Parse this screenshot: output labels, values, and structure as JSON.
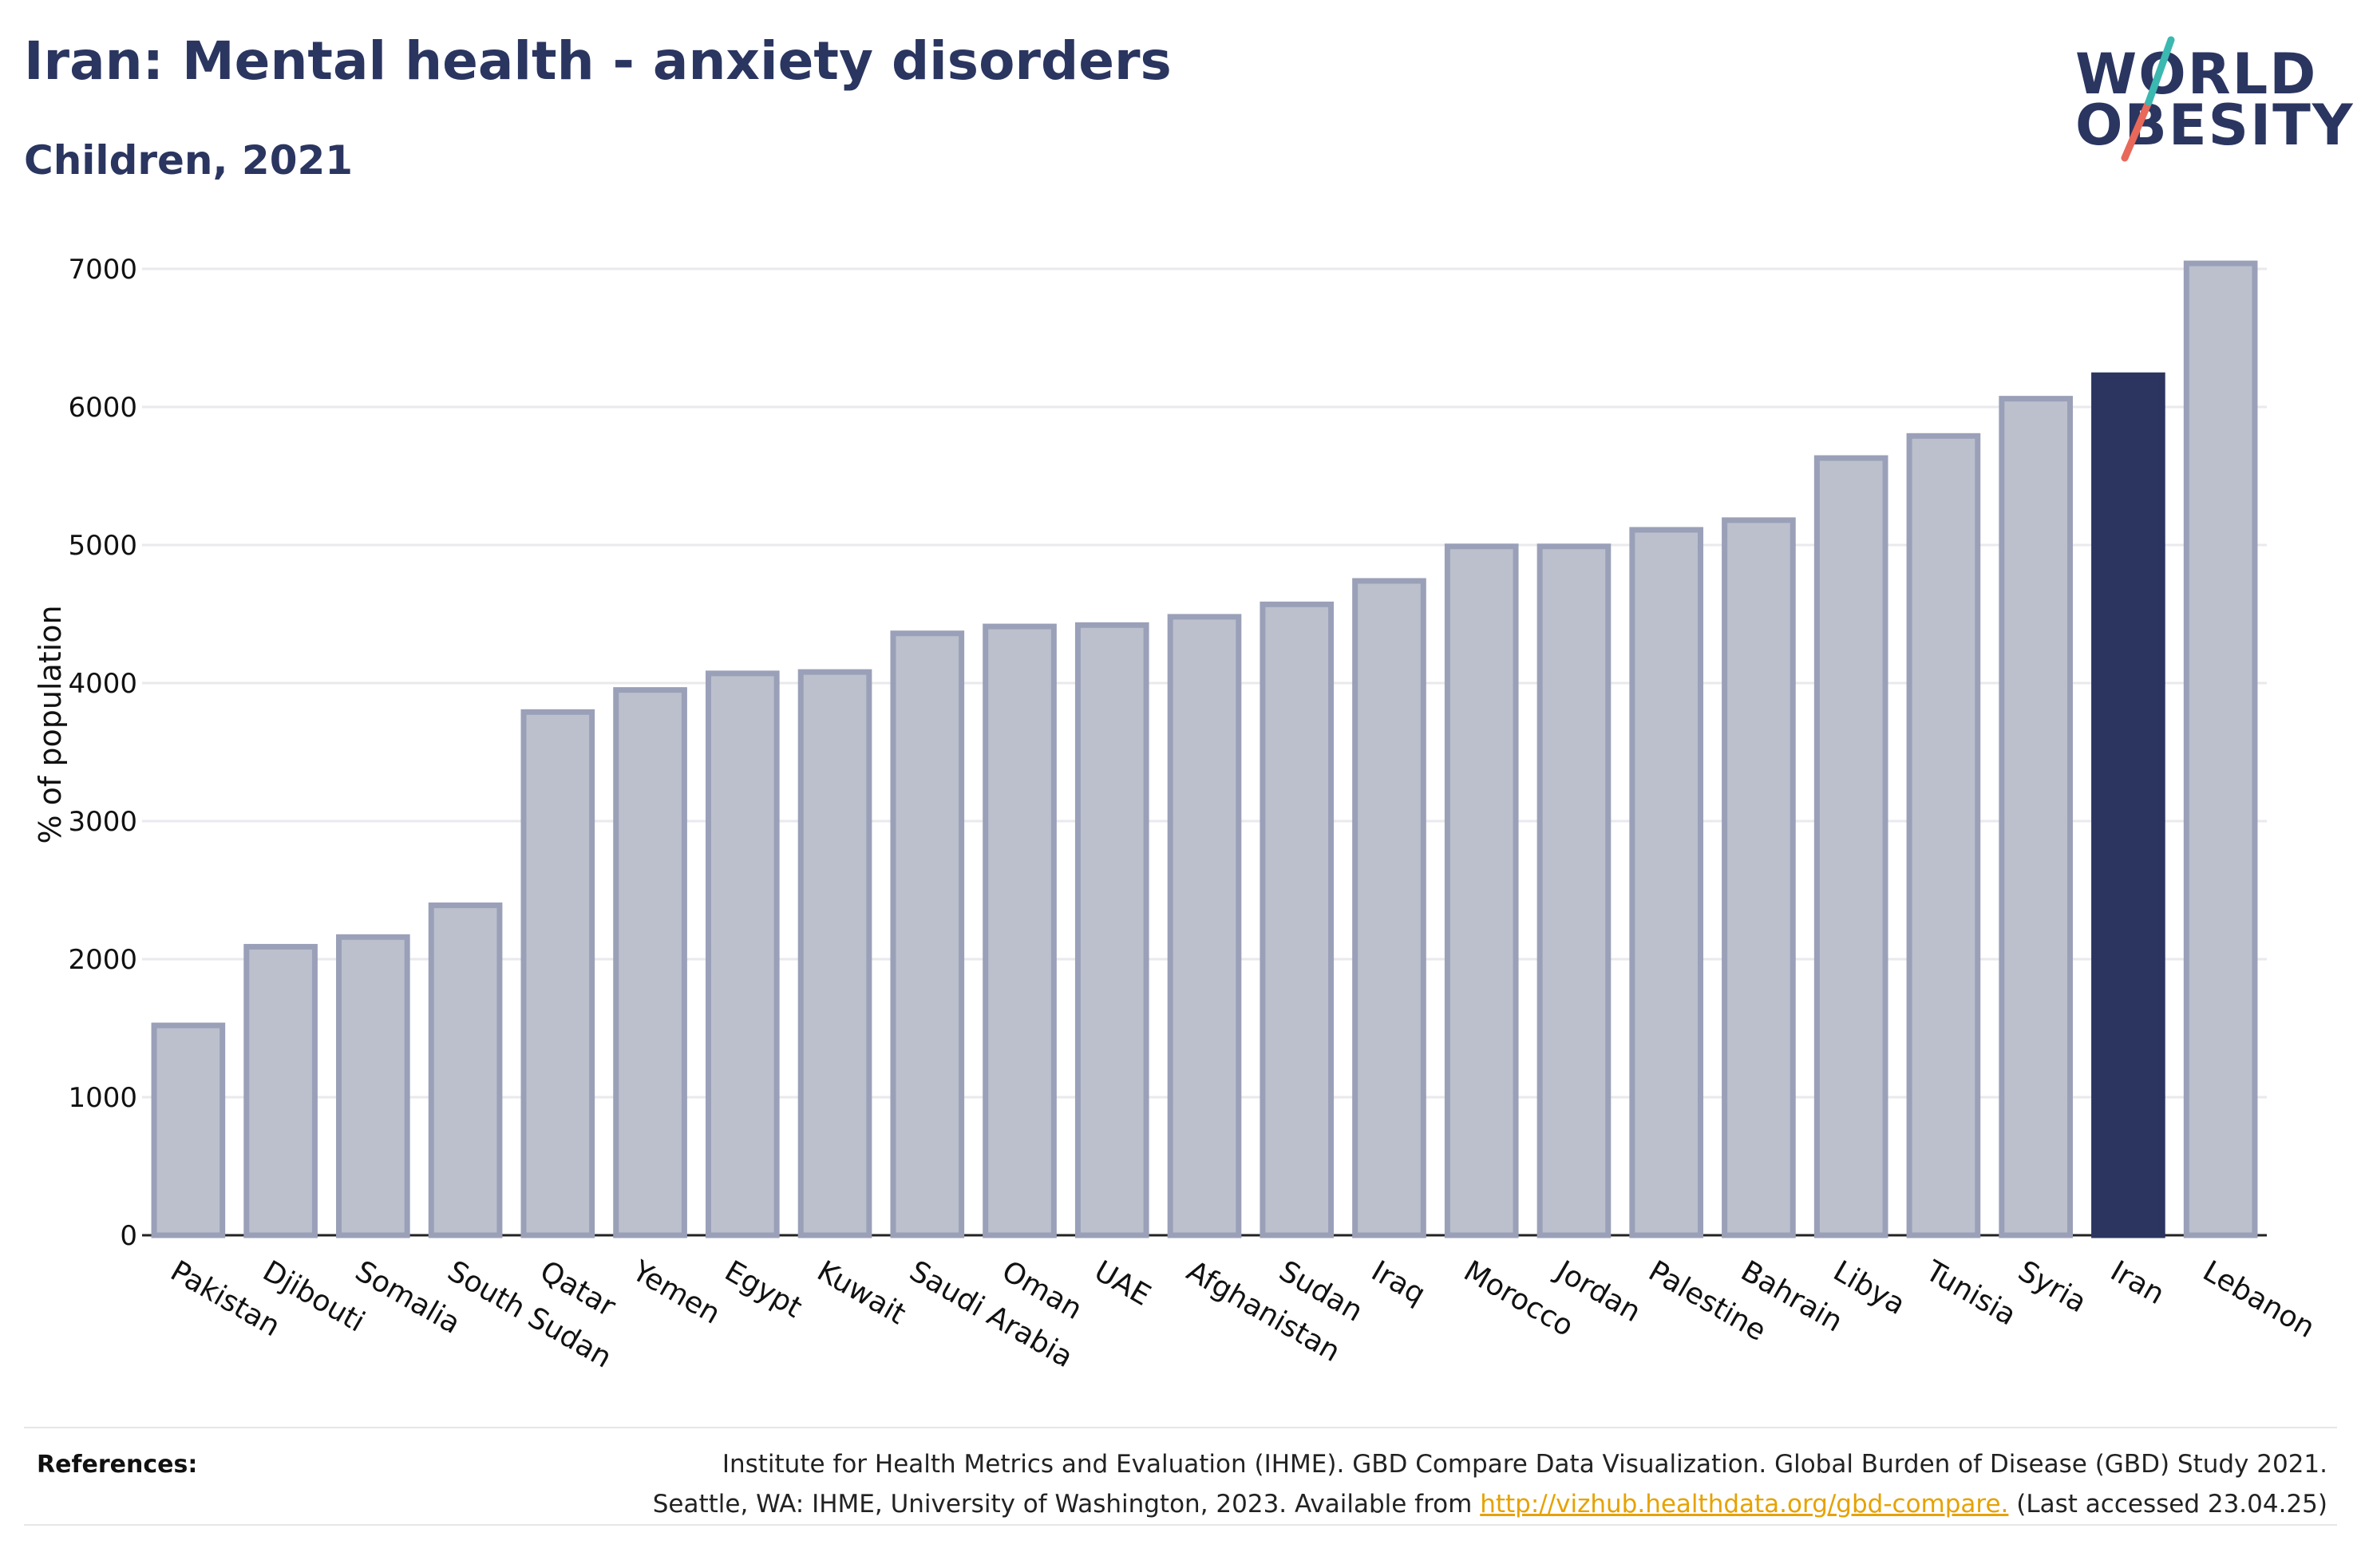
{
  "header": {
    "title": "Iran: Mental health - anxiety disorders",
    "subtitle": "Children, 2021"
  },
  "logo": {
    "line1": "WORLD",
    "line2": "OBESITY"
  },
  "colors": {
    "highlight": "#2b3560",
    "bar_fill": "#bcc0cd",
    "bar_stroke": "#9aa0b8",
    "brand_accent_teal": "#3bb8b0",
    "brand_accent_coral": "#e8685a",
    "link": "#e6a200"
  },
  "chart_data": {
    "type": "bar",
    "title": "Iran: Mental health - anxiety disorders",
    "subtitle": "Children, 2021",
    "xlabel": "",
    "ylabel": "% of population",
    "ylim": [
      0,
      7000
    ],
    "yticks": [
      0,
      1000,
      2000,
      3000,
      4000,
      5000,
      6000,
      7000
    ],
    "grid": true,
    "highlight": "Iran",
    "categories": [
      "Pakistan",
      "Djibouti",
      "Somalia",
      "South Sudan",
      "Qatar",
      "Yemen",
      "Egypt",
      "Kuwait",
      "Saudi Arabia",
      "Oman",
      "UAE",
      "Afghanistan",
      "Sudan",
      "Iraq",
      "Morocco",
      "Jordan",
      "Palestine",
      "Bahrain",
      "Libya",
      "Tunisia",
      "Syria",
      "Iran",
      "Lebanon"
    ],
    "values": [
      1520,
      2090,
      2160,
      2390,
      3790,
      3950,
      4070,
      4080,
      4360,
      4410,
      4420,
      4480,
      4570,
      4740,
      4990,
      4990,
      5110,
      5180,
      5630,
      5790,
      6060,
      6230,
      7040
    ]
  },
  "references": {
    "label": "References:",
    "line1": "Institute for Health Metrics and Evaluation (IHME). GBD Compare Data Visualization. Global Burden of Disease (GBD) Study 2021.",
    "line2_before": "Seattle, WA: IHME, University of Washington, 2023. Available from ",
    "link": "http://vizhub.healthdata.org/gbd-compare.",
    "line2_after": " (Last accessed 23.04.25)"
  }
}
